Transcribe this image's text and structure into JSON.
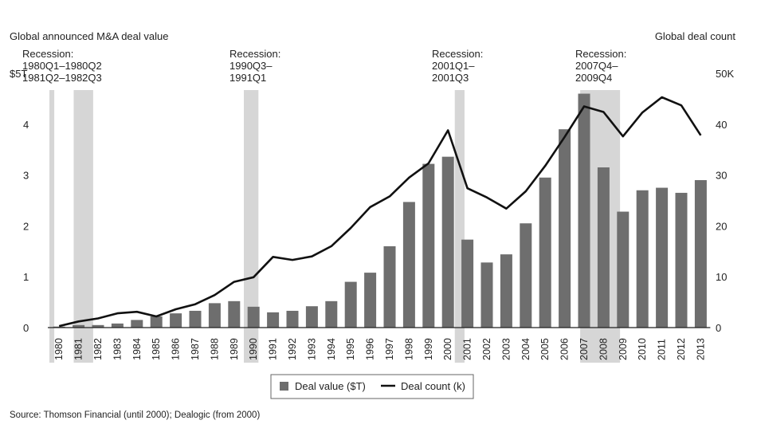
{
  "chart_data": {
    "type": "bar",
    "left_axis_title": "Global announced M&A deal value",
    "right_axis_title": "Global deal count",
    "y_left_ticks": [
      "0",
      "1",
      "2",
      "3",
      "4",
      "$5T"
    ],
    "y_right_ticks": [
      "0",
      "10",
      "20",
      "30",
      "40",
      "50K"
    ],
    "ylim_left": [
      0,
      5
    ],
    "ylim_right": [
      0,
      50
    ],
    "categories": [
      "1980",
      "1981",
      "1982",
      "1983",
      "1984",
      "1985",
      "1986",
      "1987",
      "1988",
      "1989",
      "1990",
      "1991",
      "1992",
      "1993",
      "1994",
      "1995",
      "1996",
      "1997",
      "1998",
      "1999",
      "2000",
      "2001",
      "2002",
      "2003",
      "2004",
      "2005",
      "2006",
      "2007",
      "2008",
      "2009",
      "2010",
      "2011",
      "2012",
      "2013"
    ],
    "series": [
      {
        "name": "Deal value ($T)",
        "axis": "left",
        "kind": "bar",
        "values": [
          0.02,
          0.05,
          0.05,
          0.08,
          0.15,
          0.22,
          0.28,
          0.33,
          0.48,
          0.52,
          0.41,
          0.3,
          0.33,
          0.42,
          0.52,
          0.9,
          1.08,
          1.6,
          2.47,
          3.22,
          3.36,
          1.73,
          1.28,
          1.44,
          2.05,
          2.95,
          3.9,
          4.6,
          3.15,
          2.28,
          2.7,
          2.75,
          2.65,
          2.9
        ]
      },
      {
        "name": "Deal count (k)",
        "axis": "right",
        "kind": "line",
        "values": [
          0.3,
          1.2,
          1.8,
          2.8,
          3.1,
          2.2,
          3.6,
          4.6,
          6.4,
          9.0,
          9.9,
          13.9,
          13.3,
          14.0,
          16.0,
          19.6,
          23.7,
          25.8,
          29.5,
          32.3,
          38.8,
          27.4,
          25.6,
          23.4,
          26.8,
          31.8,
          37.5,
          43.5,
          42.4,
          37.6,
          42.3,
          45.3,
          43.7,
          37.8
        ]
      }
    ],
    "recessions": [
      {
        "label_lines": [
          "Recession:",
          "1980Q1–1980Q2",
          "1981Q2–1982Q3"
        ],
        "bands": [
          [
            1980.0,
            1980.25
          ],
          [
            1981.25,
            1982.25
          ]
        ]
      },
      {
        "label_lines": [
          "Recession:",
          "1990Q3–",
          "1991Q1"
        ],
        "bands": [
          [
            1990.0,
            1990.75
          ]
        ]
      },
      {
        "label_lines": [
          "Recession:",
          "2001Q1–",
          "2001Q3"
        ],
        "bands": [
          [
            2000.85,
            2001.35
          ]
        ]
      },
      {
        "label_lines": [
          "Recession:",
          "2007Q4–",
          "2009Q4"
        ],
        "bands": [
          [
            2007.3,
            2009.35
          ]
        ]
      }
    ],
    "legend": {
      "items": [
        "Deal value ($T)",
        "Deal count (k)"
      ],
      "placement": "bottom-center"
    },
    "source": "Source: Thomson Financial (until 2000); Dealogic (from 2000)",
    "colors": {
      "bar": "#6e6e6e",
      "line": "#111111",
      "recession": "#d6d6d6"
    }
  }
}
